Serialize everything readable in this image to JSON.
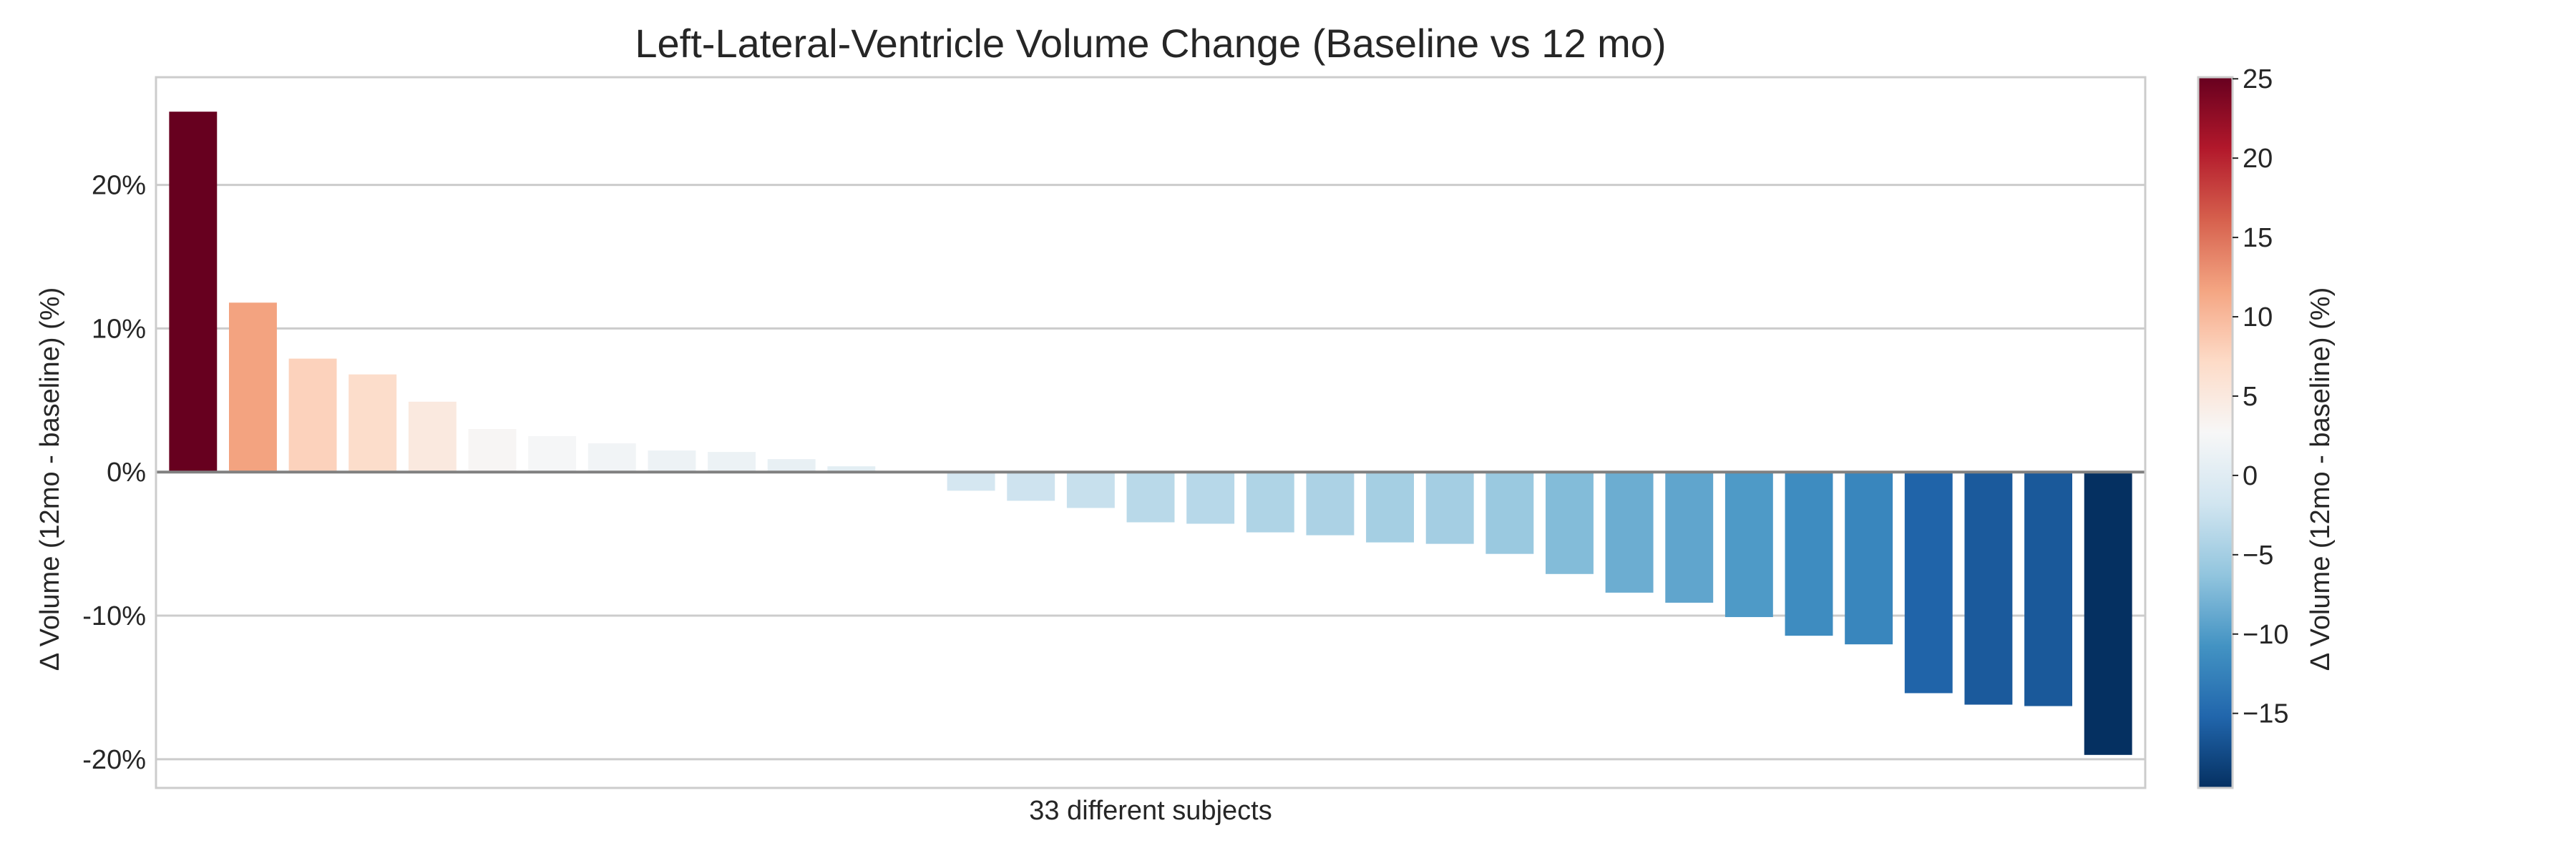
{
  "chart_data": {
    "type": "bar",
    "title": "Left-Lateral-Ventricle Volume Change (Baseline vs 12 mo)",
    "xlabel": "33 different subjects",
    "ylabel": "Δ Volume (12mo - baseline) (%)",
    "ylim": [
      -22,
      27.5
    ],
    "yticks": [
      20,
      10,
      0,
      -10,
      -20
    ],
    "ytick_labels": [
      "20%",
      "10%",
      "0%",
      "-10%",
      "-20%"
    ],
    "grid": true,
    "legend": "none",
    "values": [
      25.1,
      11.8,
      7.9,
      6.8,
      4.9,
      3.0,
      2.5,
      2.0,
      1.5,
      1.4,
      0.9,
      0.4,
      0.0,
      -1.3,
      -2.0,
      -2.5,
      -3.5,
      -3.6,
      -4.2,
      -4.4,
      -4.9,
      -5.0,
      -5.7,
      -7.1,
      -8.4,
      -9.1,
      -10.1,
      -11.4,
      -12.0,
      -15.4,
      -16.2,
      -16.3,
      -19.7
    ],
    "colorbar": {
      "label": "Δ Volume (12mo - baseline) (%)",
      "range": [
        -19.7,
        25.1
      ],
      "ticks": [
        25,
        20,
        15,
        10,
        5,
        0,
        -5,
        -10,
        -15
      ],
      "tick_labels": [
        "25",
        "20",
        "15",
        "10",
        "5",
        "0",
        "−5",
        "−10",
        "−15"
      ],
      "colormap": "RdBu_r",
      "colors": [
        "#053061",
        "#2166ac",
        "#4393c3",
        "#92c5de",
        "#d1e5f0",
        "#f7f7f7",
        "#fddbc7",
        "#f4a582",
        "#d6604d",
        "#b2182b",
        "#67001f"
      ]
    },
    "colors": {
      "zero_line": "#808080",
      "grid": "#cccccc",
      "frame": "#cccccc",
      "text": "#262626"
    }
  }
}
